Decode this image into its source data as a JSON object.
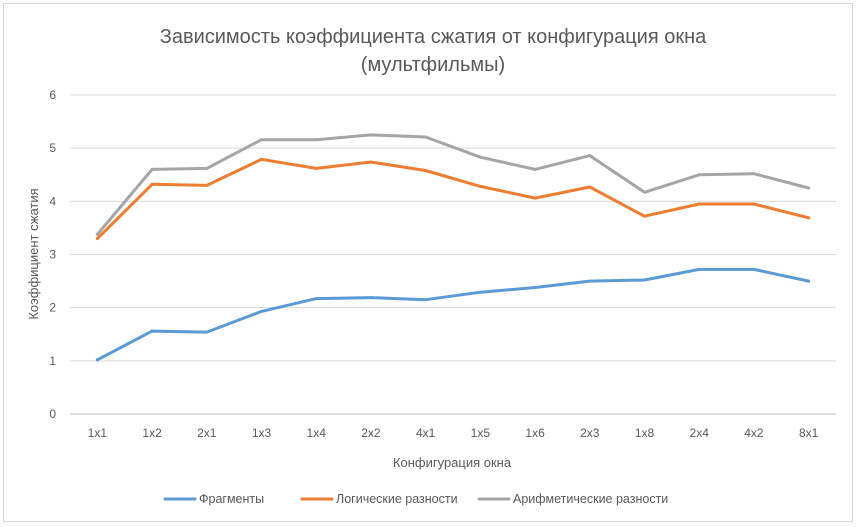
{
  "chart_data": {
    "type": "line",
    "title_line1": "Зависимость коэффициента сжатия от конфигурация окна",
    "title_line2": "(мультфильмы)",
    "xlabel": "Конфигурация окна",
    "ylabel": "Коэффициент сжатия",
    "ylim": [
      0,
      6
    ],
    "yticks": [
      "0",
      "1",
      "2",
      "3",
      "4",
      "5",
      "6"
    ],
    "categories": [
      "1x1",
      "1x2",
      "2x1",
      "1x3",
      "1x4",
      "2x2",
      "4x1",
      "1x5",
      "1x6",
      "2x3",
      "1x8",
      "2x4",
      "4x2",
      "8x1"
    ],
    "grid": true,
    "legend_position": "bottom",
    "series": [
      {
        "name": "Фрагменты",
        "color": "#5b9bd5",
        "values": [
          1.02,
          1.56,
          1.54,
          1.93,
          2.17,
          2.19,
          2.15,
          2.29,
          2.38,
          2.5,
          2.52,
          2.72,
          2.72,
          2.5
        ]
      },
      {
        "name": "Логические разности",
        "color": "#ed7d31",
        "values": [
          3.3,
          4.32,
          4.3,
          4.79,
          4.62,
          4.74,
          4.58,
          4.28,
          4.06,
          4.27,
          3.72,
          3.95,
          3.95,
          3.69
        ]
      },
      {
        "name": "Арифметические разности",
        "color": "#a5a5a5",
        "values": [
          3.38,
          4.6,
          4.62,
          5.16,
          5.16,
          5.25,
          5.21,
          4.83,
          4.6,
          4.86,
          4.17,
          4.5,
          4.52,
          4.25
        ]
      }
    ]
  }
}
